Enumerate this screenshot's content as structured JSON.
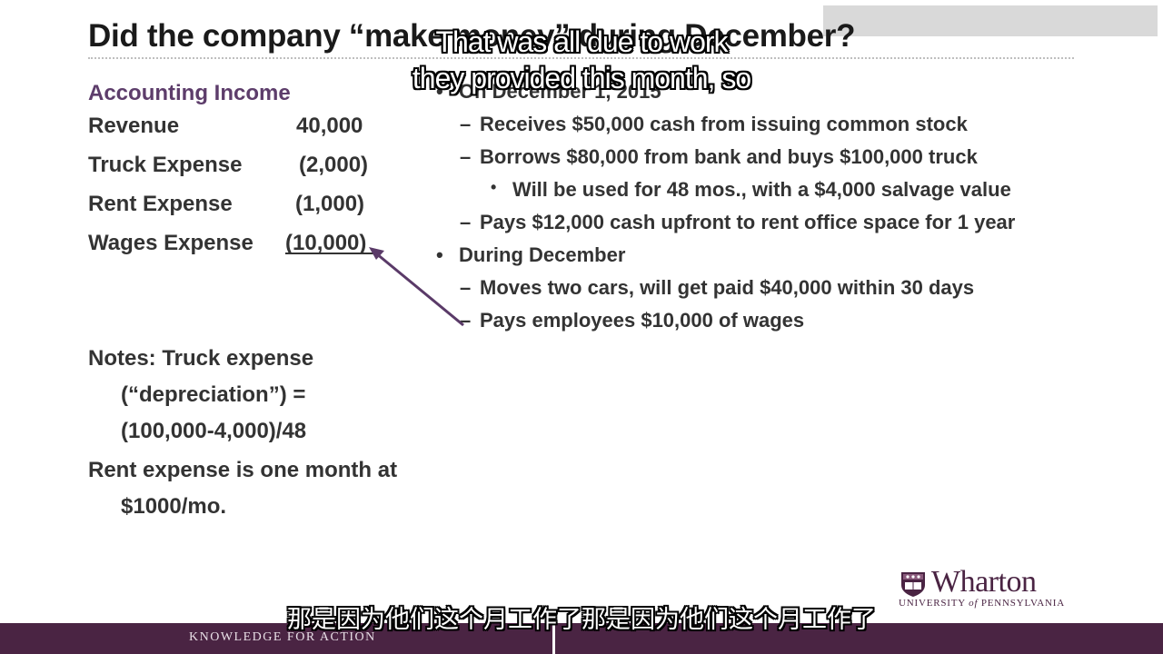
{
  "slide": {
    "title": "Did the company “make money” during December?"
  },
  "accounting": {
    "heading": "Accounting Income",
    "rows": [
      {
        "label": "Revenue",
        "amount": "40,000"
      },
      {
        "label": "Truck Expense",
        "amount": "(2,000)"
      },
      {
        "label": "Rent Expense",
        "amount": "(1,000)"
      },
      {
        "label": "Wages Expense",
        "amount": "(10,000)"
      }
    ]
  },
  "notes": {
    "line1": "Notes: Truck expense",
    "line2": "(“depreciation”) =",
    "line3": "(100,000-4,000)/48",
    "line4": "Rent expense is one month at",
    "line5": "$1000/mo."
  },
  "events": {
    "b1": "On December 1, 2015",
    "b1a": "Receives $50,000 cash from issuing common stock",
    "b1b": "Borrows $80,000 from bank and buys $100,000 truck",
    "b1b1": "Will be used for 48 mos., with a $4,000 salvage value",
    "b1c": "Pays $12,000 cash upfront to rent office space for 1 year",
    "b2": "During December",
    "b2a": "Moves two cars, will get paid $40,000 within 30 days",
    "b2b": "Pays employees $10,000 of wages"
  },
  "subtitles": {
    "en_line1": "That was all due to work",
    "en_line2": "they provided this month, so",
    "cn": "那是因为他们这个月工作了那是因为他们这个月工作了"
  },
  "footer": {
    "tagline": "KNOWLEDGE FOR ACTION"
  },
  "logo": {
    "name": "Wharton",
    "univ_prefix": "UNIVERSITY",
    "univ_of": "of",
    "univ_suffix": "PENNSYLVANIA"
  },
  "colors": {
    "heading_purple": "#5d3d6b",
    "arrow_purple": "#5a3a68",
    "footer_purple": "#4a2443",
    "text": "#333333"
  }
}
